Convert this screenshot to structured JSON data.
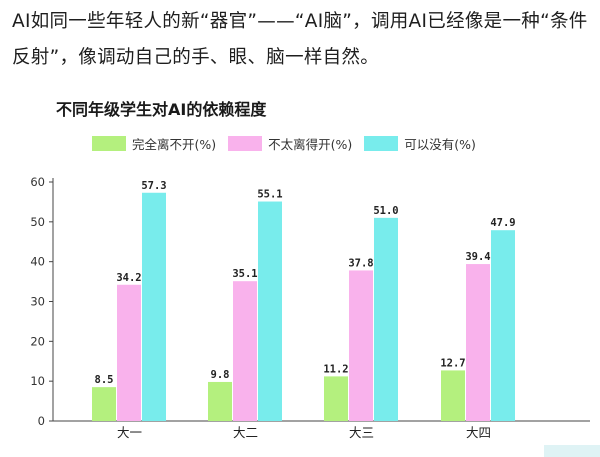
{
  "intro_text": "AI如同一些年轻人的新“器官”——“AI脑”，调用AI已经像是一种“条件反射”，像调动自己的手、眼、脑一样自然。",
  "chart_data": {
    "type": "bar",
    "title": "不同年级学生对AI的依赖程度",
    "categories": [
      "大一",
      "大二",
      "大三",
      "大四"
    ],
    "series": [
      {
        "name": "完全离不开(%)",
        "values": [
          8.5,
          9.8,
          11.2,
          12.7
        ],
        "color": "#b4f07e"
      },
      {
        "name": "不太离得开(%)",
        "values": [
          34.2,
          35.1,
          37.8,
          39.4
        ],
        "color": "#f9b2ec"
      },
      {
        "name": "可以没有(%)",
        "values": [
          57.3,
          55.1,
          51.0,
          47.9
        ],
        "color": "#78ecec"
      }
    ],
    "data_labels": [
      [
        "8.5",
        "9.8",
        "11.2",
        "12.7"
      ],
      [
        "34.2",
        "35.1",
        "37.8",
        "39.4"
      ],
      [
        "57.3",
        "55.1",
        "51.0",
        "47.9"
      ]
    ],
    "y_ticks": [
      "0",
      "10",
      "20",
      "30",
      "40",
      "50",
      "60"
    ],
    "ylim": [
      0,
      60
    ],
    "grid": false,
    "legend_position": "top"
  }
}
